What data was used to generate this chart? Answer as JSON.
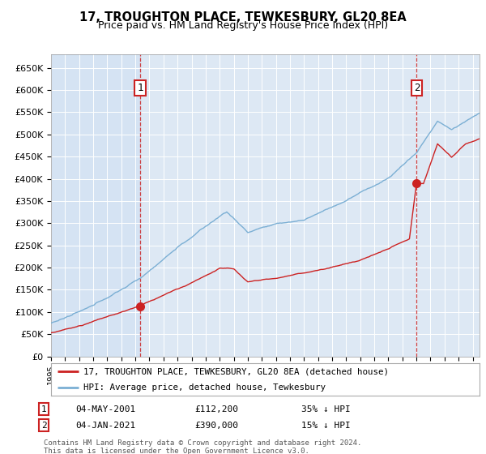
{
  "title": "17, TROUGHTON PLACE, TEWKESBURY, GL20 8EA",
  "subtitle": "Price paid vs. HM Land Registry's House Price Index (HPI)",
  "ylim": [
    0,
    680000
  ],
  "yticks": [
    0,
    50000,
    100000,
    150000,
    200000,
    250000,
    300000,
    350000,
    400000,
    450000,
    500000,
    550000,
    600000,
    650000
  ],
  "ytick_labels": [
    "£0",
    "£50K",
    "£100K",
    "£150K",
    "£200K",
    "£250K",
    "£300K",
    "£350K",
    "£400K",
    "£450K",
    "£500K",
    "£550K",
    "£600K",
    "£650K"
  ],
  "hpi_color": "#7bafd4",
  "price_color": "#cc2222",
  "background_color": "#dde8f4",
  "plot_bg_color": "#dde8f4",
  "grid_color": "#ffffff",
  "sale1_year": 2001.35,
  "sale1_price": 112200,
  "sale2_year": 2021.02,
  "sale2_price": 390000,
  "legend_line1": "17, TROUGHTON PLACE, TEWKESBURY, GL20 8EA (detached house)",
  "legend_line2": "HPI: Average price, detached house, Tewkesbury",
  "annot1_num": "1",
  "annot1_date": "04-MAY-2001",
  "annot1_price": "£112,200",
  "annot1_pct": "35% ↓ HPI",
  "annot2_num": "2",
  "annot2_date": "04-JAN-2021",
  "annot2_price": "£390,000",
  "annot2_pct": "15% ↓ HPI",
  "footer": "Contains HM Land Registry data © Crown copyright and database right 2024.\nThis data is licensed under the Open Government Licence v3.0."
}
